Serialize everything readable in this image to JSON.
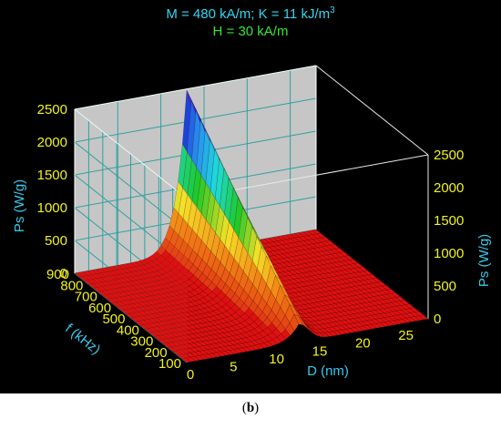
{
  "chart_data": {
    "type": "surface-3d",
    "header_line1_left": "M = 480 kA/m;  K = 11 kJ/m",
    "header_line1_sup": "3",
    "header_line2": "H = 30 kA/m",
    "x_axis": {
      "label": "D (nm)",
      "ticks": [
        "0",
        "5",
        "10",
        "15",
        "20",
        "25"
      ],
      "range": [
        0,
        28
      ]
    },
    "y_axis": {
      "label": "f (kHz)",
      "ticks": [
        "100",
        "200",
        "300",
        "400",
        "500",
        "600",
        "700",
        "800",
        "900"
      ],
      "range": [
        100,
        900
      ]
    },
    "z_axis": {
      "label": "Ps (W/g)",
      "ticks": [
        "0",
        "500",
        "1000",
        "1500",
        "2000",
        "2500"
      ],
      "range": [
        0,
        2500
      ]
    },
    "peak_D_nm": 13,
    "peak_Ps_at_900kHz": 2480,
    "colors": {
      "background": "#000000",
      "walls": "#cfcfcf",
      "grid": "#30a0a0",
      "surface_base": "#dd1111",
      "header_cyan": "#33d6f0",
      "header_green": "#33e633",
      "tick_yellow": "#f2f21e",
      "axis_label_cyan": "#33ccee"
    }
  },
  "caption": {
    "open": "(",
    "letter": "b",
    "close": ")"
  }
}
